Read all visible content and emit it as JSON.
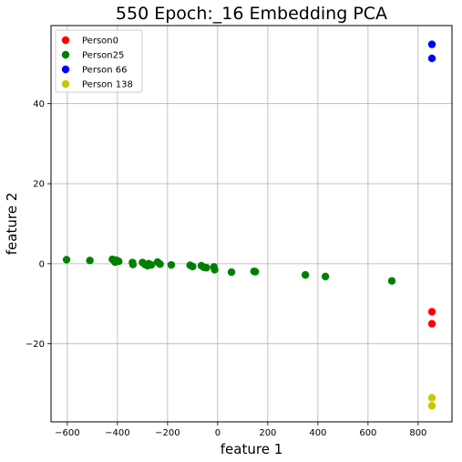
{
  "chart_data": {
    "type": "scatter",
    "title": "550 Epoch:_16 Embedding PCA",
    "xlabel": "feature 1",
    "ylabel": "feature 2",
    "xlim": [
      -665,
      935
    ],
    "ylim": [
      -39.5,
      59.5
    ],
    "xticks": [
      -600,
      -400,
      -200,
      0,
      200,
      400,
      600,
      800
    ],
    "yticks": [
      -20,
      0,
      20,
      40
    ],
    "grid": true,
    "legend_position": "top-left",
    "series": [
      {
        "name": "Person0",
        "color": "#ff0000",
        "points": [
          [
            855,
            -12
          ],
          [
            855,
            -15
          ]
        ]
      },
      {
        "name": "Person25",
        "color": "#008000",
        "points": [
          [
            -603,
            1.0
          ],
          [
            -510,
            0.8
          ],
          [
            -420,
            1.1
          ],
          [
            -405,
            0.9
          ],
          [
            -410,
            0.4
          ],
          [
            -395,
            0.6
          ],
          [
            -340,
            0.3
          ],
          [
            -338,
            -0.2
          ],
          [
            -300,
            0.3
          ],
          [
            -290,
            -0.2
          ],
          [
            -280,
            -0.5
          ],
          [
            -275,
            0.0
          ],
          [
            -265,
            -0.3
          ],
          [
            -240,
            0.4
          ],
          [
            -230,
            -0.1
          ],
          [
            -185,
            -0.3
          ],
          [
            -110,
            -0.4
          ],
          [
            -100,
            -0.7
          ],
          [
            -65,
            -0.5
          ],
          [
            -55,
            -0.9
          ],
          [
            -45,
            -1.0
          ],
          [
            -15,
            -0.8
          ],
          [
            -12,
            -1.5
          ],
          [
            55,
            -2.1
          ],
          [
            145,
            -1.9
          ],
          [
            150,
            -2.0
          ],
          [
            350,
            -2.8
          ],
          [
            430,
            -3.2
          ],
          [
            695,
            -4.3
          ]
        ]
      },
      {
        "name": "Person 66",
        "color": "#0000ff",
        "points": [
          [
            855,
            54.8
          ],
          [
            855,
            51.3
          ]
        ]
      },
      {
        "name": "Person 138",
        "color": "#c8c800",
        "points": [
          [
            855,
            -33.5
          ],
          [
            855,
            -35.5
          ]
        ]
      }
    ]
  }
}
